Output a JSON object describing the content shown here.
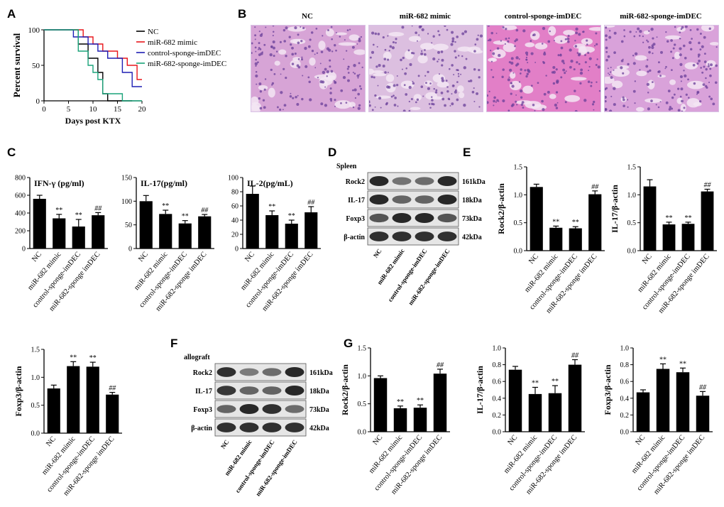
{
  "panels": {
    "A": "A",
    "B": "B",
    "C": "C",
    "D": "D",
    "E": "E",
    "F": "F",
    "G": "G"
  },
  "colors": {
    "NC": "#000000",
    "mimic": "#e8161b",
    "ctrl": "#1f1fb4",
    "sponge": "#1aa37a",
    "bar": "#000000"
  },
  "chart_data": [
    {
      "id": "A",
      "type": "line",
      "step": true,
      "xlabel": "Days post KTX",
      "ylabel": "Percent survival",
      "xlim": [
        0,
        20
      ],
      "ylim": [
        0,
        100
      ],
      "xticks": [
        "0",
        "5",
        "10",
        "15",
        "20"
      ],
      "yticks": [
        "0",
        "50",
        "100"
      ],
      "series": [
        {
          "name": "NC",
          "color": "#000000",
          "x": [
            0,
            7,
            7,
            9,
            9,
            11,
            11,
            12,
            12,
            13,
            13,
            18
          ],
          "y": [
            100,
            100,
            80,
            80,
            60,
            60,
            40,
            40,
            10,
            10,
            0,
            0
          ]
        },
        {
          "name": "miR-682 mimic",
          "color": "#e8161b",
          "x": [
            0,
            8,
            8,
            10,
            10,
            12,
            12,
            15,
            15,
            17,
            17,
            19,
            19,
            20
          ],
          "y": [
            100,
            100,
            90,
            90,
            80,
            80,
            70,
            70,
            60,
            60,
            50,
            50,
            30,
            30
          ]
        },
        {
          "name": "control-sponge-imDEC",
          "color": "#1f1fb4",
          "x": [
            0,
            6,
            6,
            9,
            9,
            11,
            11,
            13,
            13,
            16,
            16,
            18,
            18,
            20
          ],
          "y": [
            100,
            100,
            90,
            90,
            80,
            80,
            70,
            70,
            60,
            60,
            40,
            40,
            20,
            20
          ]
        },
        {
          "name": "miR-682-sponge-imDEC",
          "color": "#1aa37a",
          "x": [
            0,
            7,
            7,
            9,
            9,
            10,
            10,
            11,
            11,
            12,
            12,
            16,
            16,
            20
          ],
          "y": [
            100,
            100,
            70,
            70,
            50,
            50,
            40,
            40,
            30,
            30,
            10,
            10,
            0,
            0
          ]
        }
      ]
    },
    {
      "id": "C1",
      "type": "bar",
      "title": "IFN-γ (pg/ml)",
      "categories": [
        "NC",
        "miR-682 mimic",
        "control-sponge-imDEC",
        "miR-682-sponge imDEC"
      ],
      "values": [
        560,
        340,
        248,
        375
      ],
      "errors": [
        40,
        45,
        80,
        30
      ],
      "annotations": [
        "",
        "**",
        "**",
        "##"
      ],
      "ylim": [
        0,
        800
      ],
      "yticks": [
        "0",
        "200",
        "400",
        "600",
        "800"
      ]
    },
    {
      "id": "C2",
      "type": "bar",
      "title": "IL-17(pg/ml)",
      "categories": [
        "NC",
        "miR-682 mimic",
        "control-sponge-imDEC",
        "miR-682-sponge imDEC"
      ],
      "values": [
        100,
        73,
        53,
        68
      ],
      "errors": [
        12,
        8,
        6,
        4
      ],
      "annotations": [
        "",
        "**",
        "**",
        "##"
      ],
      "ylim": [
        0,
        150
      ],
      "yticks": [
        "0",
        "50",
        "100",
        "150"
      ]
    },
    {
      "id": "C3",
      "type": "bar",
      "title": "IL-2(pg/mL)",
      "categories": [
        "NC",
        "miR-682 mimic",
        "control-sponge-imDEC",
        "miR-682-sponge imDEC"
      ],
      "values": [
        77,
        47,
        35,
        51
      ],
      "errors": [
        11,
        6,
        5,
        8
      ],
      "annotations": [
        "",
        "**",
        "**",
        "##"
      ],
      "ylim": [
        0,
        100
      ],
      "yticks": [
        "0",
        "20",
        "40",
        "60",
        "80",
        "100"
      ]
    },
    {
      "id": "E1",
      "type": "bar",
      "ylabel": "Rock2/β-actin",
      "categories": [
        "NC",
        "miR-682 mimic",
        "control-sponge-imDEC",
        "miR-682-sponge imDEC"
      ],
      "values": [
        1.14,
        0.41,
        0.4,
        1.01
      ],
      "errors": [
        0.05,
        0.03,
        0.03,
        0.06
      ],
      "annotations": [
        "",
        "**",
        "**",
        "##"
      ],
      "ylim": [
        0,
        1.5
      ],
      "yticks": [
        "0.0",
        "0.5",
        "1.0",
        "1.5"
      ]
    },
    {
      "id": "E2",
      "type": "bar",
      "ylabel": "IL-17/β-actin",
      "categories": [
        "NC",
        "miR-682 mimic",
        "control-sponge-imDEC",
        "miR-682-sponge imDEC"
      ],
      "values": [
        1.15,
        0.47,
        0.48,
        1.06
      ],
      "errors": [
        0.12,
        0.04,
        0.03,
        0.04
      ],
      "annotations": [
        "",
        "**",
        "**",
        "##"
      ],
      "ylim": [
        0,
        1.5
      ],
      "yticks": [
        "0.0",
        "0.5",
        "1.0",
        "1.5"
      ]
    },
    {
      "id": "E3",
      "type": "bar",
      "ylabel": "Foxp3/β-actin",
      "categories": [
        "NC",
        "miR-682 mimic",
        "control-sponge-imDEC",
        "miR-682-sponge imDEC"
      ],
      "values": [
        0.8,
        1.2,
        1.19,
        0.69
      ],
      "errors": [
        0.06,
        0.08,
        0.08,
        0.04
      ],
      "annotations": [
        "",
        "**",
        "**",
        "##"
      ],
      "ylim": [
        0,
        1.5
      ],
      "yticks": [
        "0.0",
        "0.5",
        "1.0",
        "1.5"
      ]
    },
    {
      "id": "G1",
      "type": "bar",
      "ylabel": "Rock2/β-actin",
      "categories": [
        "NC",
        "miR-682 mimic",
        "control-sponge-imDEC",
        "miR-682-sponge imDEC"
      ],
      "values": [
        0.96,
        0.42,
        0.43,
        1.04
      ],
      "errors": [
        0.04,
        0.04,
        0.05,
        0.08
      ],
      "annotations": [
        "",
        "**",
        "**",
        "##"
      ],
      "ylim": [
        0,
        1.5
      ],
      "yticks": [
        "0.0",
        "0.5",
        "1.0",
        "1.5"
      ]
    },
    {
      "id": "G2",
      "type": "bar",
      "ylabel": "IL-17/β-actin",
      "categories": [
        "NC",
        "miR-682 mimic",
        "control-sponge-imDEC",
        "miR-682-sponge imDEC"
      ],
      "values": [
        0.74,
        0.45,
        0.46,
        0.8
      ],
      "errors": [
        0.04,
        0.08,
        0.09,
        0.06
      ],
      "annotations": [
        "",
        "**",
        "**",
        "##"
      ],
      "ylim": [
        0,
        1.0
      ],
      "yticks": [
        "0.0",
        "0.2",
        "0.4",
        "0.6",
        "0.8",
        "1.0"
      ]
    },
    {
      "id": "G3",
      "type": "bar",
      "ylabel": "Foxp3/β-actin",
      "categories": [
        "NC",
        "miR-682 mimic",
        "control-sponge-imDEC",
        "miR-682-sponge imDEC"
      ],
      "values": [
        0.47,
        0.75,
        0.71,
        0.43
      ],
      "errors": [
        0.03,
        0.06,
        0.05,
        0.05
      ],
      "annotations": [
        "",
        "**",
        "**",
        "##"
      ],
      "ylim": [
        0,
        1.0
      ],
      "yticks": [
        "0.0",
        "0.2",
        "0.4",
        "0.6",
        "0.8",
        "1.0"
      ]
    }
  ],
  "histology": {
    "titles": [
      "NC",
      "miR-682 mimic",
      "control-sponge-imDEC",
      "miR-682-sponge-imDEC"
    ]
  },
  "blots": [
    {
      "id": "D",
      "title": "Spleen",
      "rows": [
        "Rock2",
        "IL-17",
        "Foxp3",
        "β-actin"
      ],
      "sizes": [
        "161kDa",
        "18kDa",
        "73kDa",
        "42kDa"
      ],
      "lanes": [
        "NC",
        "miR-682 mimic",
        "control-sponge-imDEC",
        "miR-682-sponge-imDEC"
      ],
      "intensity": [
        [
          1.0,
          0.5,
          0.55,
          1.0
        ],
        [
          1.0,
          0.6,
          0.6,
          1.0
        ],
        [
          0.7,
          1.0,
          1.0,
          0.7
        ],
        [
          0.95,
          0.95,
          0.95,
          0.95
        ]
      ]
    },
    {
      "id": "F",
      "title": "allograft",
      "rows": [
        "Rock2",
        "IL-17",
        "Foxp3",
        "β-actin"
      ],
      "sizes": [
        "161kDa",
        "18kDa",
        "73kDa",
        "42kDa"
      ],
      "lanes": [
        "NC",
        "miR-682 mimic",
        "control-sponge-imDEC",
        "miR-682-sponge-imDEC"
      ],
      "intensity": [
        [
          0.95,
          0.45,
          0.55,
          1.0
        ],
        [
          0.9,
          0.6,
          0.6,
          1.0
        ],
        [
          0.6,
          1.0,
          0.95,
          0.55
        ],
        [
          0.95,
          0.95,
          0.95,
          0.95
        ]
      ]
    }
  ]
}
